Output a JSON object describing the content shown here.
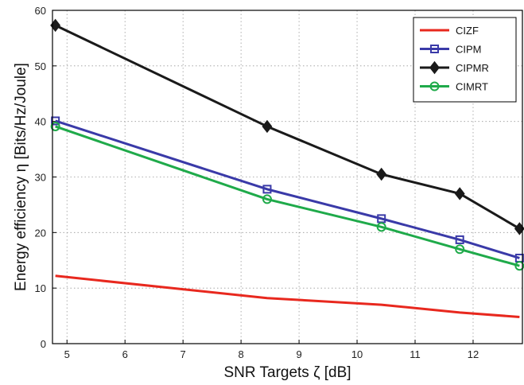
{
  "chart_data": {
    "type": "line",
    "title": "",
    "xlabel": "SNR Targets ζ [dB]",
    "ylabel": "Energy efficiency η [Bits/Hz/Joule]",
    "xlim": [
      4.75,
      12.85
    ],
    "ylim": [
      0,
      60
    ],
    "xticks": [
      5,
      6,
      7,
      8,
      9,
      10,
      11,
      12
    ],
    "yticks": [
      0,
      10,
      20,
      30,
      40,
      50,
      60
    ],
    "grid": true,
    "legend_position": "top-right",
    "x": [
      4.8,
      8.45,
      10.42,
      11.77,
      12.8
    ],
    "series": [
      {
        "name": "CIZF",
        "color": "#e8281e",
        "marker": "none",
        "values": [
          12.2,
          8.2,
          7.0,
          5.6,
          4.8
        ]
      },
      {
        "name": "CIPM",
        "color": "#3a3aa8",
        "marker": "square",
        "values": [
          40.1,
          27.8,
          22.5,
          18.7,
          15.4
        ]
      },
      {
        "name": "CIPMR",
        "color": "#1a1a1a",
        "marker": "diamond",
        "values": [
          57.3,
          39.1,
          30.5,
          27.0,
          20.7
        ]
      },
      {
        "name": "CIMRT",
        "color": "#1faa4a",
        "marker": "circle",
        "values": [
          39.1,
          26.0,
          21.0,
          17.0,
          14.0
        ]
      }
    ]
  }
}
